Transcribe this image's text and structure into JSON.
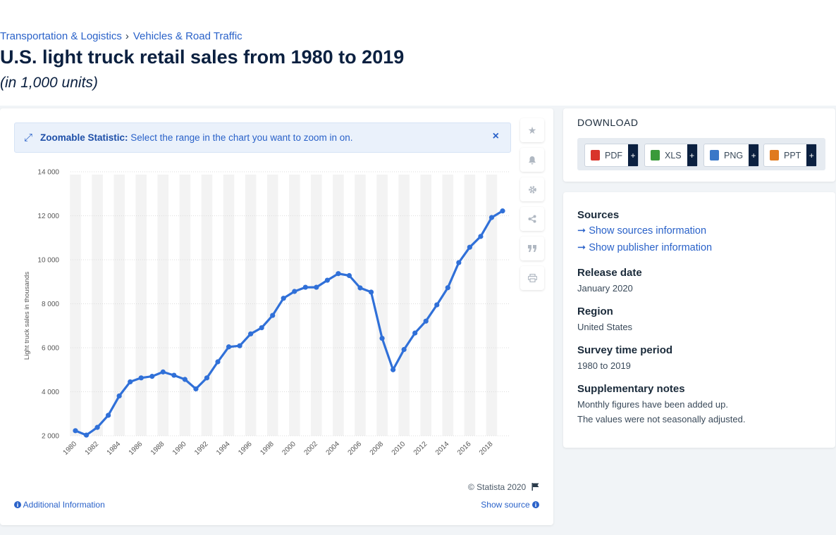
{
  "breadcrumb": {
    "items": [
      "Transportation & Logistics",
      "Vehicles & Road Traffic"
    ],
    "separator": "›"
  },
  "title": "U.S. light truck retail sales from 1980 to 2019",
  "subtitle": "(in 1,000 units)",
  "zoom_banner": {
    "label": "Zoomable Statistic:",
    "text": "Select the range in the chart you want to zoom in on.",
    "close": "×"
  },
  "tools": [
    "star-icon",
    "bell-icon",
    "gear-icon",
    "share-icon",
    "quote-icon",
    "print-icon"
  ],
  "footer": {
    "copyright": "© Statista 2020",
    "additional_info": "Additional Information",
    "show_source": "Show source"
  },
  "download": {
    "title": "DOWNLOAD",
    "buttons": [
      {
        "label": "PDF",
        "color": "#d9342b"
      },
      {
        "label": "XLS",
        "color": "#3a9a3a"
      },
      {
        "label": "PNG",
        "color": "#3a78c8"
      },
      {
        "label": "PPT",
        "color": "#e07a1f"
      }
    ],
    "plus": "+"
  },
  "info": {
    "sources_heading": "Sources",
    "sources_link": "Show sources information",
    "publisher_link": "Show publisher information",
    "release_heading": "Release date",
    "release_value": "January 2020",
    "region_heading": "Region",
    "region_value": "United States",
    "survey_heading": "Survey time period",
    "survey_value": "1980 to 2019",
    "notes_heading": "Supplementary notes",
    "notes_line1": "Monthly figures have been added up.",
    "notes_line2": "The values were not seasonally adjusted."
  },
  "colors": {
    "accent": "#2a62c9",
    "line": "#3070d8",
    "title": "#0b2040"
  },
  "chart_data": {
    "type": "line",
    "title": "",
    "xlabel": "",
    "ylabel": "Light truck sales in thousands",
    "x": [
      1980,
      1981,
      1982,
      1983,
      1984,
      1985,
      1986,
      1987,
      1988,
      1989,
      1990,
      1991,
      1992,
      1993,
      1994,
      1995,
      1996,
      1997,
      1998,
      1999,
      2000,
      2001,
      2002,
      2003,
      2004,
      2005,
      2006,
      2007,
      2008,
      2009,
      2010,
      2011,
      2012,
      2013,
      2014,
      2015,
      2016,
      2017,
      2018,
      2019
    ],
    "values": [
      2230,
      2030,
      2380,
      2930,
      3810,
      4450,
      4630,
      4700,
      4900,
      4750,
      4560,
      4130,
      4630,
      5360,
      6040,
      6090,
      6630,
      6910,
      7470,
      8250,
      8560,
      8750,
      8750,
      9070,
      9370,
      9280,
      8720,
      8530,
      6430,
      5000,
      5920,
      6670,
      7210,
      7950,
      8730,
      9870,
      10570,
      11060,
      11920,
      12220
    ],
    "ylim": [
      2000,
      14000
    ],
    "yticks": [
      "2 000",
      "4 000",
      "6 000",
      "8 000",
      "10 000",
      "12 000",
      "14 000"
    ],
    "xticks": [
      "1980",
      "1982",
      "1984",
      "1986",
      "1988",
      "1990",
      "1992",
      "1994",
      "1996",
      "1998",
      "2000",
      "2002",
      "2004",
      "2006",
      "2008",
      "2010",
      "2012",
      "2014",
      "2016",
      "2018"
    ],
    "grid": true,
    "legend": "none"
  }
}
